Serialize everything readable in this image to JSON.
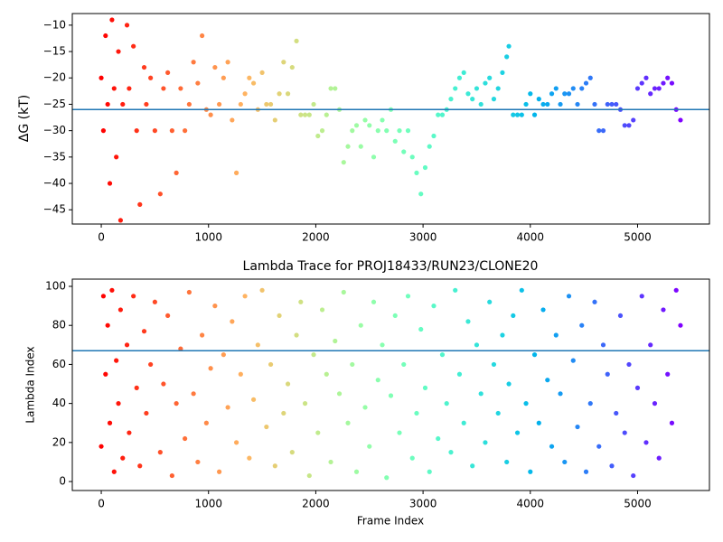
{
  "chart_data": [
    {
      "type": "scatter",
      "ylabel": "ΔG (kT)",
      "colormap": "rainbow_r",
      "hline": -26,
      "hline_color": "#1f77b4",
      "xlim": [
        -270,
        5670
      ],
      "ylim": [
        -47.7,
        -7.8
      ],
      "xticks": [
        0,
        1000,
        2000,
        3000,
        4000,
        5000
      ],
      "yticks": [
        {
          "value": -45,
          "label": "−45"
        },
        {
          "value": -40,
          "label": "−40"
        },
        {
          "value": -35,
          "label": "−35"
        },
        {
          "value": -30,
          "label": "−30"
        },
        {
          "value": -25,
          "label": "−25"
        },
        {
          "value": -20,
          "label": "−20"
        },
        {
          "value": -15,
          "label": "−15"
        },
        {
          "value": -10,
          "label": "−10"
        }
      ],
      "x": [
        0,
        20,
        40,
        60,
        80,
        100,
        120,
        140,
        160,
        180,
        200,
        240,
        260,
        300,
        330,
        360,
        400,
        420,
        460,
        500,
        550,
        580,
        620,
        660,
        700,
        740,
        780,
        820,
        860,
        900,
        940,
        980,
        1020,
        1060,
        1100,
        1140,
        1180,
        1220,
        1260,
        1300,
        1340,
        1380,
        1420,
        1460,
        1500,
        1540,
        1580,
        1620,
        1660,
        1700,
        1740,
        1780,
        1820,
        1860,
        1900,
        1940,
        1980,
        2020,
        2060,
        2100,
        2140,
        2180,
        2220,
        2260,
        2300,
        2340,
        2380,
        2420,
        2460,
        2500,
        2540,
        2580,
        2620,
        2660,
        2700,
        2740,
        2780,
        2820,
        2860,
        2900,
        2940,
        2980,
        3020,
        3060,
        3100,
        3140,
        3180,
        3220,
        3260,
        3300,
        3340,
        3380,
        3420,
        3460,
        3500,
        3540,
        3580,
        3620,
        3660,
        3700,
        3740,
        3780,
        3800,
        3840,
        3880,
        3920,
        3960,
        4000,
        4040,
        4080,
        4120,
        4160,
        4200,
        4240,
        4280,
        4320,
        4360,
        4400,
        4440,
        4480,
        4520,
        4560,
        4600,
        4640,
        4680,
        4720,
        4760,
        4800,
        4840,
        4880,
        4920,
        4960,
        5000,
        5040,
        5080,
        5120,
        5160,
        5200,
        5240,
        5280,
        5320,
        5360,
        5400
      ],
      "values": [
        -20,
        -30,
        -12,
        -25,
        -40,
        -9,
        -22,
        -35,
        -15,
        -47,
        -25,
        -10,
        -22,
        -14,
        -30,
        -44,
        -18,
        -25,
        -20,
        -30,
        -42,
        -22,
        -19,
        -30,
        -38,
        -22,
        -30,
        -25,
        -17,
        -21,
        -12,
        -26,
        -27,
        -18,
        -25,
        -20,
        -17,
        -28,
        -38,
        -25,
        -23,
        -20,
        -21,
        -26,
        -19,
        -25,
        -25,
        -28,
        -23,
        -17,
        -23,
        -18,
        -13,
        -27,
        -27,
        -27,
        -25,
        -31,
        -30,
        -27,
        -22,
        -22,
        -26,
        -36,
        -33,
        -30,
        -29,
        -33,
        -28,
        -29,
        -35,
        -30,
        -28,
        -30,
        -26,
        -32,
        -30,
        -34,
        -30,
        -35,
        -38,
        -42,
        -37,
        -33,
        -31,
        -27,
        -27,
        -26,
        -24,
        -22,
        -20,
        -19,
        -23,
        -24,
        -22,
        -25,
        -21,
        -20,
        -24,
        -22,
        -19,
        -16,
        -14,
        -27,
        -27,
        -27,
        -25,
        -23,
        -27,
        -24,
        -25,
        -25,
        -23,
        -22,
        -25,
        -23,
        -23,
        -22,
        -25,
        -22,
        -21,
        -20,
        -25,
        -30,
        -30,
        -25,
        -25,
        -25,
        -26,
        -29,
        -29,
        -28,
        -22,
        -21,
        -20,
        -23,
        -22,
        -22,
        -21,
        -20,
        -21,
        -26,
        -28
      ]
    },
    {
      "type": "scatter",
      "title": "Lambda Trace for PROJ18433/RUN23/CLONE20",
      "xlabel": "Frame Index",
      "ylabel": "Lambda Index",
      "colormap": "rainbow_r",
      "hline": 67,
      "hline_color": "#1f77b4",
      "xlim": [
        -270,
        5670
      ],
      "ylim": [
        -4.6,
        103.7
      ],
      "xticks": [
        0,
        1000,
        2000,
        3000,
        4000,
        5000
      ],
      "yticks": [
        0,
        20,
        40,
        60,
        80,
        100
      ],
      "x": [
        0,
        20,
        40,
        60,
        80,
        100,
        120,
        140,
        160,
        180,
        200,
        240,
        260,
        300,
        330,
        360,
        400,
        420,
        460,
        500,
        550,
        580,
        620,
        660,
        700,
        740,
        780,
        820,
        860,
        900,
        940,
        980,
        1020,
        1060,
        1100,
        1140,
        1180,
        1220,
        1260,
        1300,
        1340,
        1380,
        1420,
        1460,
        1500,
        1540,
        1580,
        1620,
        1660,
        1700,
        1740,
        1780,
        1820,
        1860,
        1900,
        1940,
        1980,
        2020,
        2060,
        2100,
        2140,
        2180,
        2220,
        2260,
        2300,
        2340,
        2380,
        2420,
        2460,
        2500,
        2540,
        2580,
        2620,
        2660,
        2700,
        2740,
        2780,
        2820,
        2860,
        2900,
        2940,
        2980,
        3020,
        3060,
        3100,
        3140,
        3180,
        3220,
        3260,
        3300,
        3340,
        3380,
        3420,
        3460,
        3500,
        3540,
        3580,
        3620,
        3660,
        3700,
        3740,
        3780,
        3800,
        3840,
        3880,
        3920,
        3960,
        4000,
        4040,
        4080,
        4120,
        4160,
        4200,
        4240,
        4280,
        4320,
        4360,
        4400,
        4440,
        4480,
        4520,
        4560,
        4600,
        4640,
        4680,
        4720,
        4760,
        4800,
        4840,
        4880,
        4920,
        4960,
        5000,
        5040,
        5080,
        5120,
        5160,
        5200,
        5240,
        5280,
        5320,
        5360,
        5400
      ],
      "values": [
        18,
        95,
        55,
        80,
        30,
        98,
        5,
        62,
        40,
        88,
        12,
        70,
        25,
        95,
        48,
        8,
        77,
        35,
        60,
        92,
        15,
        50,
        85,
        3,
        40,
        68,
        22,
        97,
        45,
        10,
        75,
        30,
        58,
        90,
        5,
        65,
        38,
        82,
        20,
        55,
        95,
        12,
        42,
        70,
        98,
        28,
        60,
        8,
        85,
        35,
        50,
        15,
        75,
        92,
        40,
        3,
        65,
        25,
        88,
        55,
        10,
        72,
        45,
        97,
        30,
        60,
        5,
        80,
        38,
        18,
        92,
        52,
        70,
        2,
        44,
        85,
        25,
        60,
        95,
        12,
        35,
        78,
        48,
        5,
        90,
        22,
        65,
        40,
        15,
        98,
        55,
        30,
        82,
        8,
        70,
        45,
        20,
        92,
        60,
        35,
        75,
        10,
        50,
        85,
        25,
        98,
        40,
        5,
        65,
        30,
        88,
        52,
        18,
        75,
        45,
        10,
        95,
        62,
        28,
        80,
        5,
        40,
        92,
        18,
        70,
        55,
        8,
        35,
        85,
        25,
        60,
        3,
        48,
        95,
        20,
        70,
        40,
        12,
        88,
        55,
        30,
        98,
        80
      ]
    }
  ]
}
